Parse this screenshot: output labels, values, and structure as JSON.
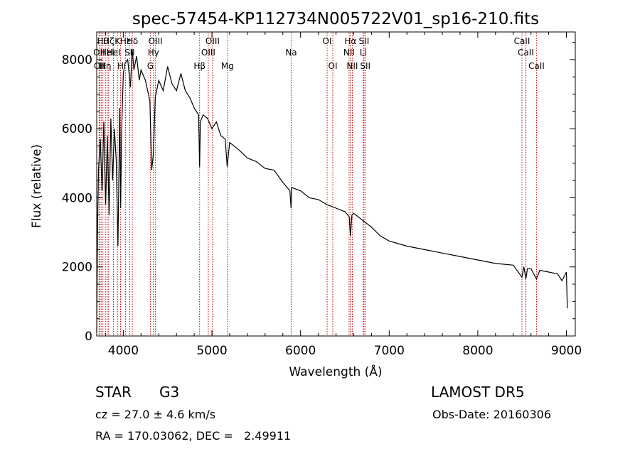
{
  "chart_data": {
    "type": "line",
    "title": "spec-57454-KP112734N005722V01_sp16-210.fits",
    "xlabel": "Wavelength (Å)",
    "ylabel": "Flux (relative)",
    "xlim": [
      3700,
      9100
    ],
    "ylim": [
      0,
      8800
    ],
    "xticks": [
      4000,
      5000,
      6000,
      7000,
      8000,
      9000
    ],
    "yticks": [
      0,
      2000,
      4000,
      6000,
      8000
    ],
    "grid": false,
    "line_color": "#000000",
    "marker_color": "#cc0000",
    "series": [
      {
        "x": [
          3700,
          3710,
          3720,
          3740,
          3760,
          3780,
          3800,
          3820,
          3840,
          3860,
          3880,
          3900,
          3920,
          3940,
          3960,
          3970,
          3980,
          4000,
          4020,
          4050,
          4080,
          4100,
          4120,
          4150,
          4180,
          4200,
          4250,
          4300,
          4320,
          4340,
          4360,
          4400,
          4450,
          4500,
          4550,
          4600,
          4650,
          4700,
          4750,
          4800,
          4850,
          4861,
          4870,
          4900,
          4950,
          5000,
          5050,
          5100,
          5150,
          5172,
          5200,
          5300,
          5400,
          5500,
          5600,
          5700,
          5800,
          5880,
          5893,
          5900,
          6000,
          6100,
          6200,
          6300,
          6400,
          6500,
          6550,
          6563,
          6580,
          6600,
          6700,
          6800,
          6900,
          7000,
          7200,
          7400,
          7600,
          7800,
          8000,
          8200,
          8400,
          8498,
          8520,
          8542,
          8560,
          8600,
          8662,
          8700,
          8800,
          8900,
          8950,
          9000,
          9010
        ],
        "y": [
          100,
          3200,
          4800,
          5700,
          4200,
          6200,
          3800,
          5800,
          3500,
          6300,
          4500,
          6000,
          5100,
          2600,
          6600,
          3700,
          5800,
          7600,
          7900,
          8000,
          7200,
          8300,
          7700,
          8100,
          7400,
          7700,
          7400,
          6800,
          4800,
          5300,
          6900,
          7400,
          7100,
          7800,
          7300,
          7100,
          7600,
          7100,
          6900,
          6600,
          6400,
          4900,
          6200,
          6400,
          6300,
          6000,
          6200,
          5800,
          5700,
          4900,
          5600,
          5400,
          5150,
          5050,
          4850,
          4800,
          4450,
          4200,
          3700,
          4300,
          4200,
          4000,
          3950,
          3800,
          3700,
          3600,
          3450,
          2900,
          3500,
          3550,
          3350,
          3150,
          2900,
          2750,
          2600,
          2500,
          2400,
          2300,
          2200,
          2100,
          2050,
          1700,
          2000,
          1650,
          1950,
          1950,
          1650,
          1900,
          1850,
          1800,
          1600,
          1850,
          800
        ]
      }
    ],
    "line_markers": [
      {
        "x": 3727,
        "label": "OII",
        "row": 2
      },
      {
        "x": 3733,
        "label": "OII",
        "row": 3
      },
      {
        "x": 3750,
        "label": "H",
        "row": 3
      },
      {
        "x": 3770,
        "label": "Hθ",
        "row": 1
      },
      {
        "x": 3798,
        "label": "Hη",
        "row": 3
      },
      {
        "x": 3819,
        "label": "HeI",
        "row": 2
      },
      {
        "x": 3835,
        "label": "Hζ",
        "row": 1
      },
      {
        "x": 3889,
        "label": "HeI",
        "row": 2
      },
      {
        "x": 3934,
        "label": "K",
        "row": 1
      },
      {
        "x": 3969,
        "label": "H",
        "row": 3
      },
      {
        "x": 4026,
        "label": "Hε",
        "row": 1
      },
      {
        "x": 4072,
        "label": "SII",
        "row": 2
      },
      {
        "x": 4102,
        "label": "Hδ",
        "row": 1
      },
      {
        "x": 4305,
        "label": "G",
        "row": 3
      },
      {
        "x": 4340,
        "label": "Hγ",
        "row": 2
      },
      {
        "x": 4363,
        "label": "OIII",
        "row": 1
      },
      {
        "x": 4861,
        "label": "Hβ",
        "row": 3
      },
      {
        "x": 4959,
        "label": "OIII",
        "row": 2
      },
      {
        "x": 5007,
        "label": "OIII",
        "row": 1
      },
      {
        "x": 5175,
        "label": "Mg",
        "row": 3
      },
      {
        "x": 5894,
        "label": "Na",
        "row": 2
      },
      {
        "x": 6300,
        "label": "OI",
        "row": 1
      },
      {
        "x": 6364,
        "label": "OI",
        "row": 3
      },
      {
        "x": 6548,
        "label": "NII",
        "row": 2
      },
      {
        "x": 6563,
        "label": "Hα",
        "row": 1
      },
      {
        "x": 6584,
        "label": "NII",
        "row": 3
      },
      {
        "x": 6707,
        "label": "Li",
        "row": 2
      },
      {
        "x": 6716,
        "label": "SII",
        "row": 1
      },
      {
        "x": 6731,
        "label": "SII",
        "row": 3
      },
      {
        "x": 8498,
        "label": "CaII",
        "row": 1
      },
      {
        "x": 8542,
        "label": "CaII",
        "row": 2
      },
      {
        "x": 8662,
        "label": "CaII",
        "row": 3
      }
    ]
  },
  "info": {
    "object_class": "STAR",
    "subclass": "G3",
    "survey": "LAMOST DR5",
    "redshift": "cz = 27.0 ± 4.6 km/s",
    "obs_date": "Obs-Date: 20160306",
    "coords": "RA = 170.03062, DEC =   2.49911"
  }
}
